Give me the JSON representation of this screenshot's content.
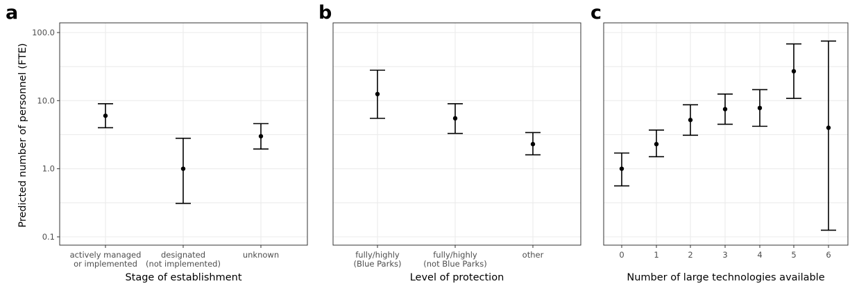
{
  "chart_data": [
    {
      "panel": "a",
      "type": "scatter",
      "xlabel": "Stage of establishment",
      "ylabel": "Predicted number of personnel (FTE)",
      "y_scale": "log",
      "yticks": [
        "0.1",
        "1.0",
        "10.0",
        "100.0"
      ],
      "ylim": [
        0.075,
        135
      ],
      "categories": [
        [
          "actively managed",
          "or implemented"
        ],
        [
          "designated",
          "(not implemented)"
        ],
        [
          "unknown"
        ]
      ],
      "values": [
        6.0,
        1.0,
        3.0
      ],
      "lower": [
        4.0,
        0.31,
        1.95
      ],
      "upper": [
        9.0,
        2.8,
        4.6
      ],
      "grid": true
    },
    {
      "panel": "b",
      "type": "scatter",
      "xlabel": "Level of protection",
      "y_scale": "log",
      "ylim": [
        0.075,
        135
      ],
      "categories": [
        [
          "fully/highly",
          "(Blue Parks)"
        ],
        [
          "fully/highly",
          "(not Blue Parks)"
        ],
        [
          "other"
        ]
      ],
      "values": [
        12.5,
        5.5,
        2.3
      ],
      "lower": [
        5.5,
        3.3,
        1.6
      ],
      "upper": [
        28.0,
        9.0,
        3.4
      ],
      "grid": true
    },
    {
      "panel": "c",
      "type": "scatter",
      "xlabel": "Number of large technologies available",
      "y_scale": "log",
      "ylim": [
        0.075,
        135
      ],
      "categories": [
        [
          "0"
        ],
        [
          "1"
        ],
        [
          "2"
        ],
        [
          "3"
        ],
        [
          "4"
        ],
        [
          "5"
        ],
        [
          "6"
        ]
      ],
      "values": [
        1.0,
        2.3,
        5.2,
        7.5,
        7.8,
        27.0,
        4.0
      ],
      "lower": [
        0.56,
        1.5,
        3.1,
        4.5,
        4.2,
        10.8,
        0.125
      ],
      "upper": [
        1.7,
        3.7,
        8.7,
        12.5,
        14.5,
        68.0,
        75.0
      ],
      "grid": true
    }
  ]
}
